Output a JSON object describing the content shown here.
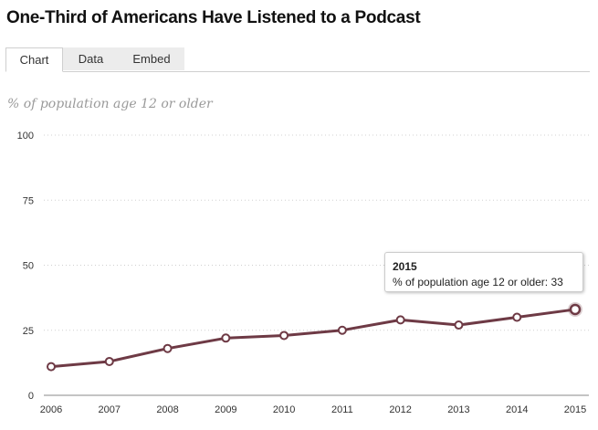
{
  "header": {
    "title": "One-Third of Americans Have Listened to a Podcast"
  },
  "tabs": [
    {
      "label": "Chart",
      "active": true
    },
    {
      "label": "Data",
      "active": false
    },
    {
      "label": "Embed",
      "active": false
    }
  ],
  "colors": {
    "line": "#6e3a45",
    "grid": "#d0d0d0",
    "axis": "#888888"
  },
  "tooltip": {
    "year": "2015",
    "series_label": "% of population age 12 or older",
    "value": "33"
  },
  "chart_data": {
    "type": "line",
    "title": "One-Third of Americans Have Listened to a Podcast",
    "subtitle": "% of population age 12 or older",
    "x": [
      2006,
      2007,
      2008,
      2009,
      2010,
      2011,
      2012,
      2013,
      2014,
      2015
    ],
    "series": [
      {
        "values": [
          11,
          13,
          18,
          22,
          23,
          25,
          29,
          27,
          30,
          33
        ]
      }
    ],
    "ylim": [
      0,
      100
    ],
    "yticks": [
      0,
      25,
      50,
      75,
      100
    ],
    "grid": true,
    "highlighted_point": {
      "x": 2015,
      "y": 33
    }
  }
}
